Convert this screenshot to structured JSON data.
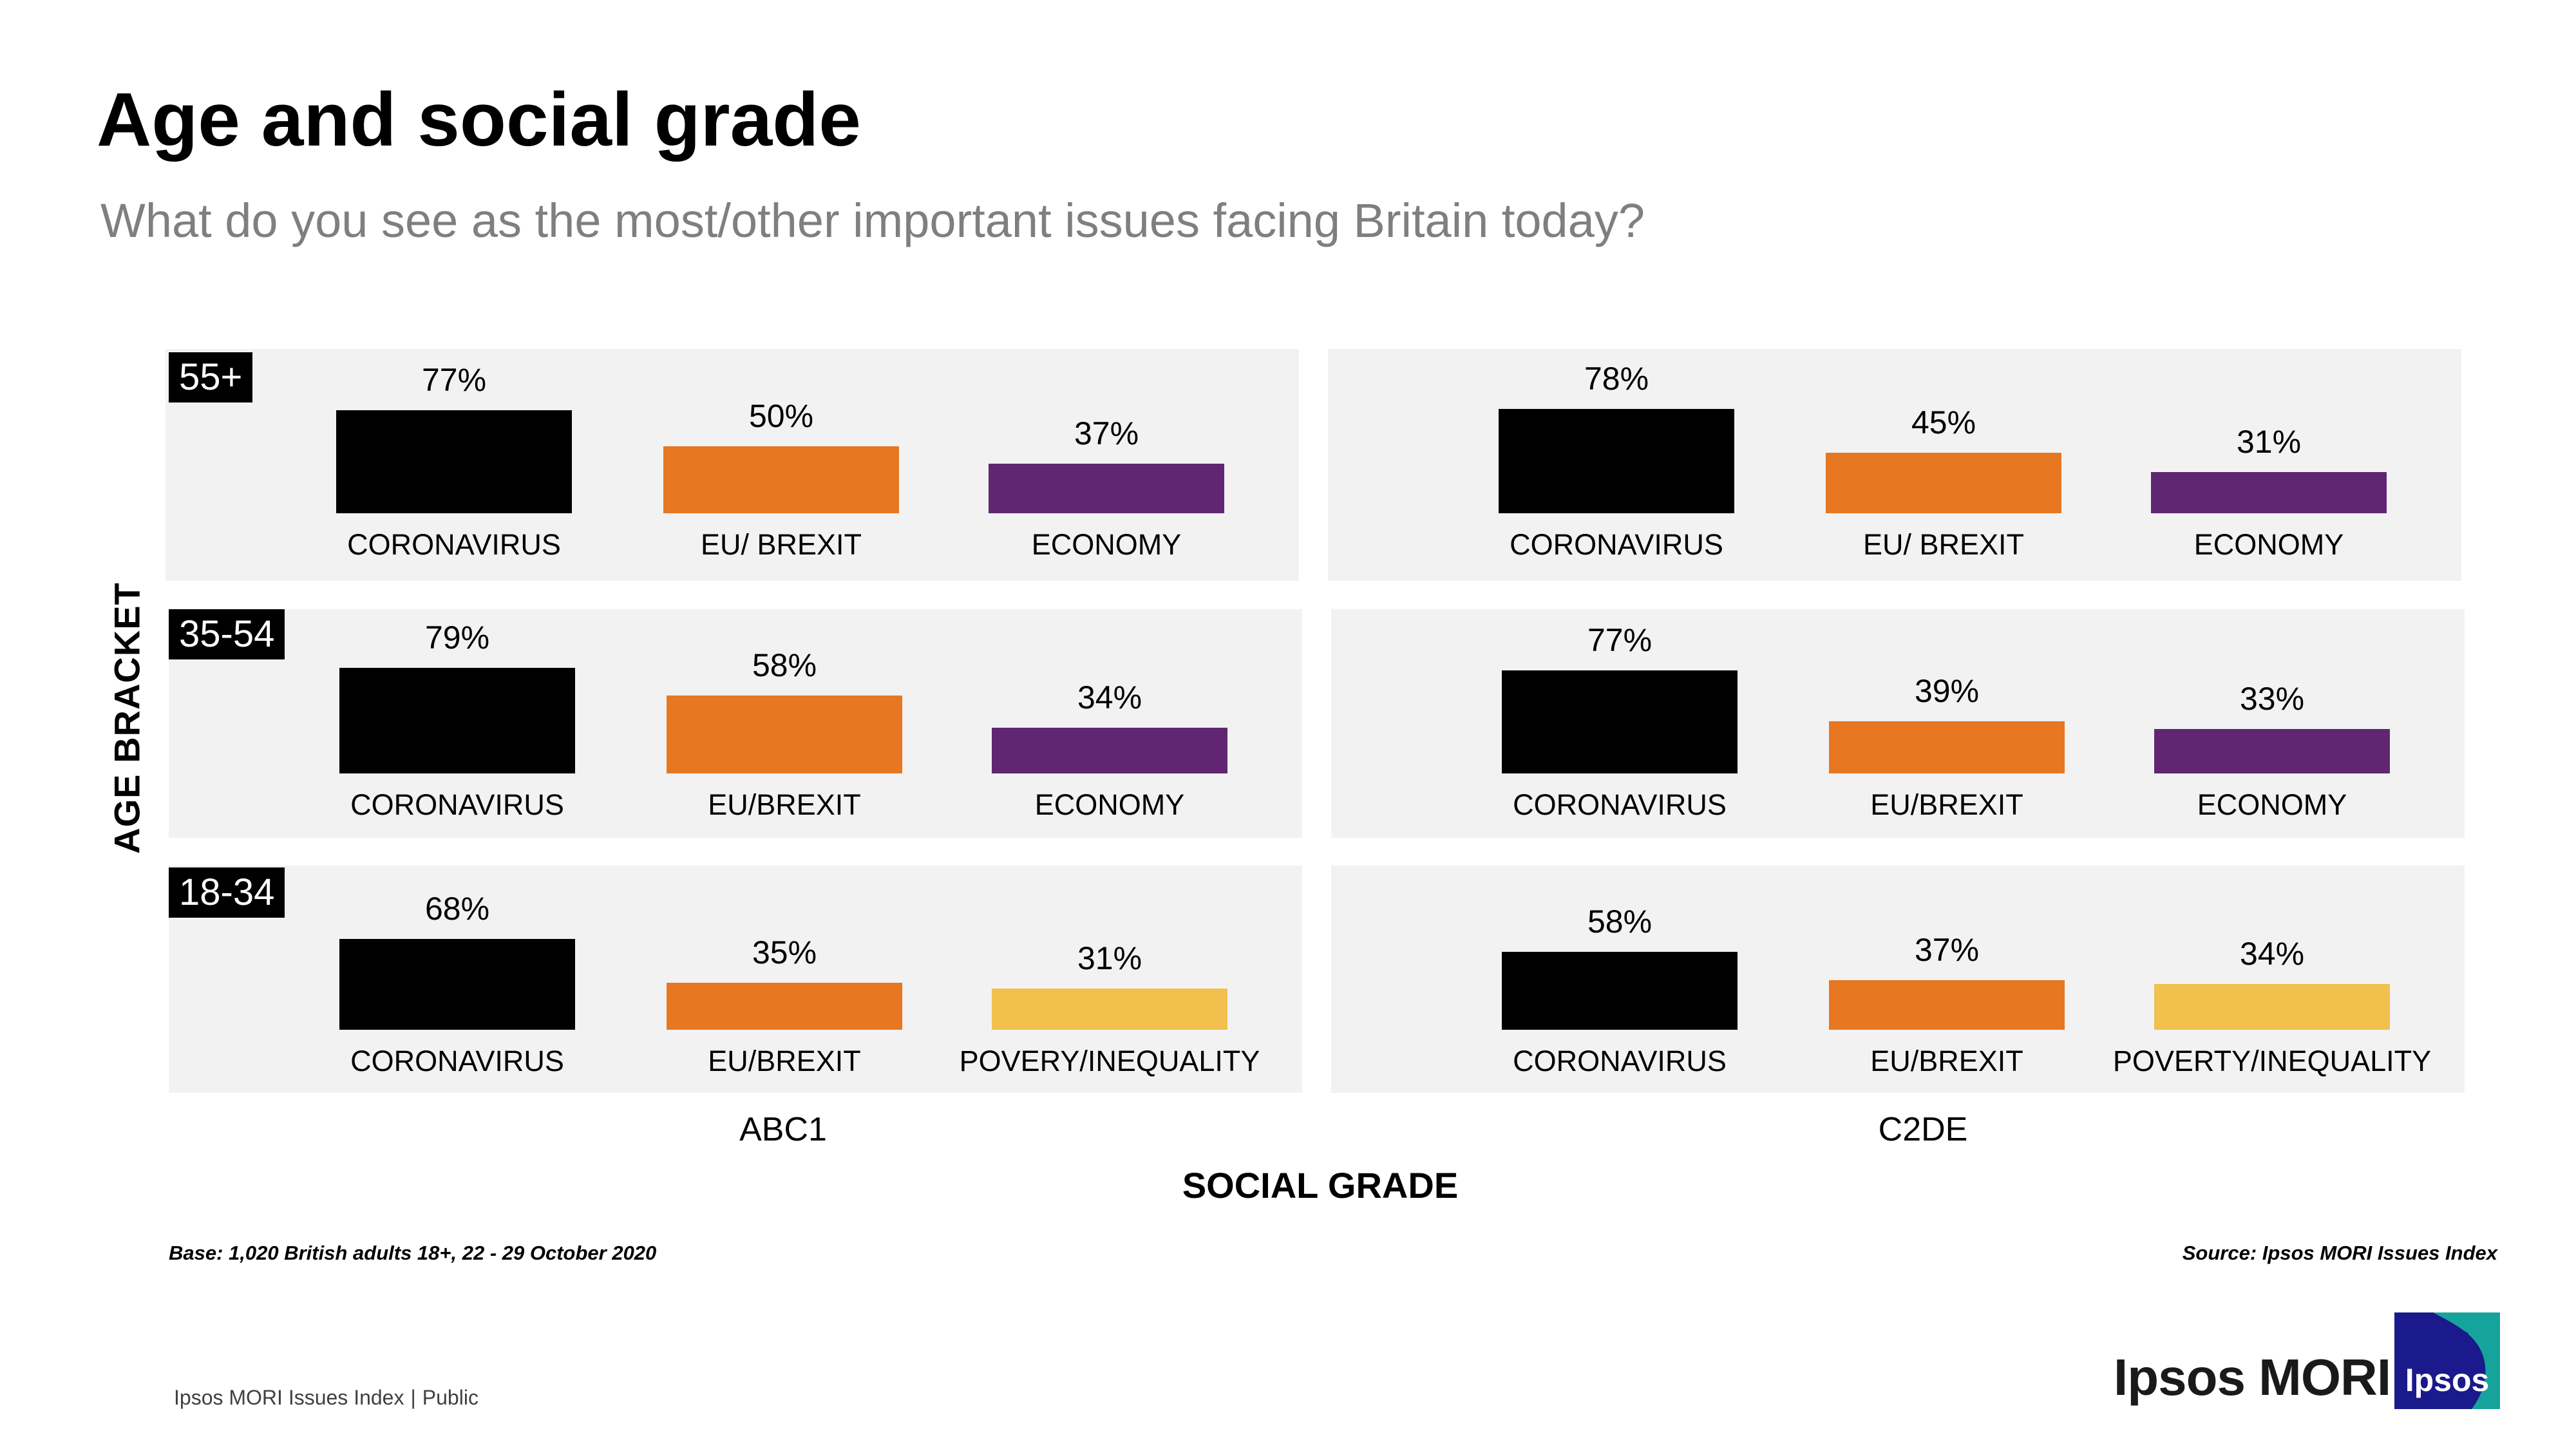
{
  "title": "Age and social grade",
  "subtitle": "What do you see as the most/other important issues facing Britain today?",
  "chart_data": {
    "type": "bar",
    "title": "Age and social grade",
    "subtitle": "What do you see as the most/other important issues facing Britain today?",
    "xlabel": "SOCIAL GRADE",
    "ylabel": "AGE BRACKET",
    "ylim": [
      0,
      100
    ],
    "unit": "%",
    "social_grades": [
      "ABC1",
      "C2DE"
    ],
    "age_brackets": [
      "55+",
      "35-54",
      "18-34"
    ],
    "colors": {
      "coronavirus": "#000000",
      "brexit": "#e87722",
      "economy": "#612671",
      "inequality": "#f1c04d",
      "panel": "#f2f2f2"
    },
    "panels": [
      {
        "age": "55+",
        "grade": "ABC1",
        "bars": [
          {
            "label": "CORONAVIRUS",
            "value": 77,
            "display": "77%",
            "color_key": "coronavirus"
          },
          {
            "label": "EU/ BREXIT",
            "value": 50,
            "display": "50%",
            "color_key": "brexit"
          },
          {
            "label": "ECONOMY",
            "value": 37,
            "display": "37%",
            "color_key": "economy"
          }
        ]
      },
      {
        "age": "55+",
        "grade": "C2DE",
        "bars": [
          {
            "label": "CORONAVIRUS",
            "value": 78,
            "display": "78%",
            "color_key": "coronavirus"
          },
          {
            "label": "EU/ BREXIT",
            "value": 45,
            "display": "45%",
            "color_key": "brexit"
          },
          {
            "label": "ECONOMY",
            "value": 31,
            "display": "31%",
            "color_key": "economy"
          }
        ]
      },
      {
        "age": "35-54",
        "grade": "ABC1",
        "bars": [
          {
            "label": "CORONAVIRUS",
            "value": 79,
            "display": "79%",
            "color_key": "coronavirus"
          },
          {
            "label": "EU/BREXIT",
            "value": 58,
            "display": "58%",
            "color_key": "brexit"
          },
          {
            "label": "ECONOMY",
            "value": 34,
            "display": "34%",
            "color_key": "economy"
          }
        ]
      },
      {
        "age": "35-54",
        "grade": "C2DE",
        "bars": [
          {
            "label": "CORONAVIRUS",
            "value": 77,
            "display": "77%",
            "color_key": "coronavirus"
          },
          {
            "label": "EU/BREXIT",
            "value": 39,
            "display": "39%",
            "color_key": "brexit"
          },
          {
            "label": "ECONOMY",
            "value": 33,
            "display": "33%",
            "color_key": "economy"
          }
        ]
      },
      {
        "age": "18-34",
        "grade": "ABC1",
        "bars": [
          {
            "label": "CORONAVIRUS",
            "value": 68,
            "display": "68%",
            "color_key": "coronavirus"
          },
          {
            "label": "EU/BREXIT",
            "value": 35,
            "display": "35%",
            "color_key": "brexit"
          },
          {
            "label": "POVERY/INEQUALITY",
            "value": 31,
            "display": "31%",
            "color_key": "inequality"
          }
        ]
      },
      {
        "age": "18-34",
        "grade": "C2DE",
        "bars": [
          {
            "label": "CORONAVIRUS",
            "value": 58,
            "display": "58%",
            "color_key": "coronavirus"
          },
          {
            "label": "EU/BREXIT",
            "value": 37,
            "display": "37%",
            "color_key": "brexit"
          },
          {
            "label": "POVERTY/INEQUALITY",
            "value": 34,
            "display": "34%",
            "color_key": "inequality"
          }
        ]
      }
    ]
  },
  "notes": {
    "base": "Base: 1,020 British adults 18+, 22 - 29 October 2020",
    "source": "Source: Ipsos MORI Issues Index"
  },
  "footer": {
    "left": "Ipsos MORI Issues Index",
    "separator": "|",
    "right": "Public"
  },
  "brand": {
    "name": "Ipsos MORI",
    "logo_text": "Ipsos",
    "logo_color": "#1a1a8c",
    "logo_accent": "#16a39b"
  }
}
